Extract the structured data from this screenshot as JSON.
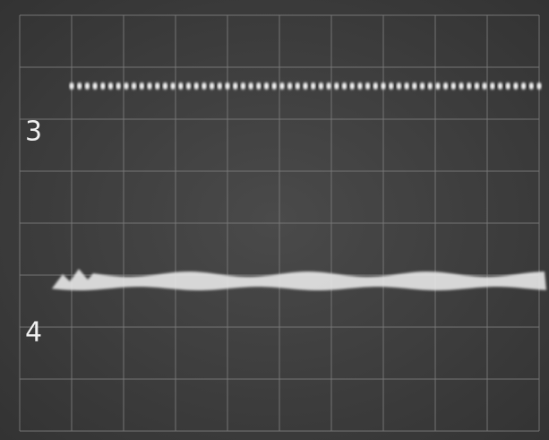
{
  "channels": [
    {
      "label": "3"
    },
    {
      "label": "4"
    }
  ]
}
